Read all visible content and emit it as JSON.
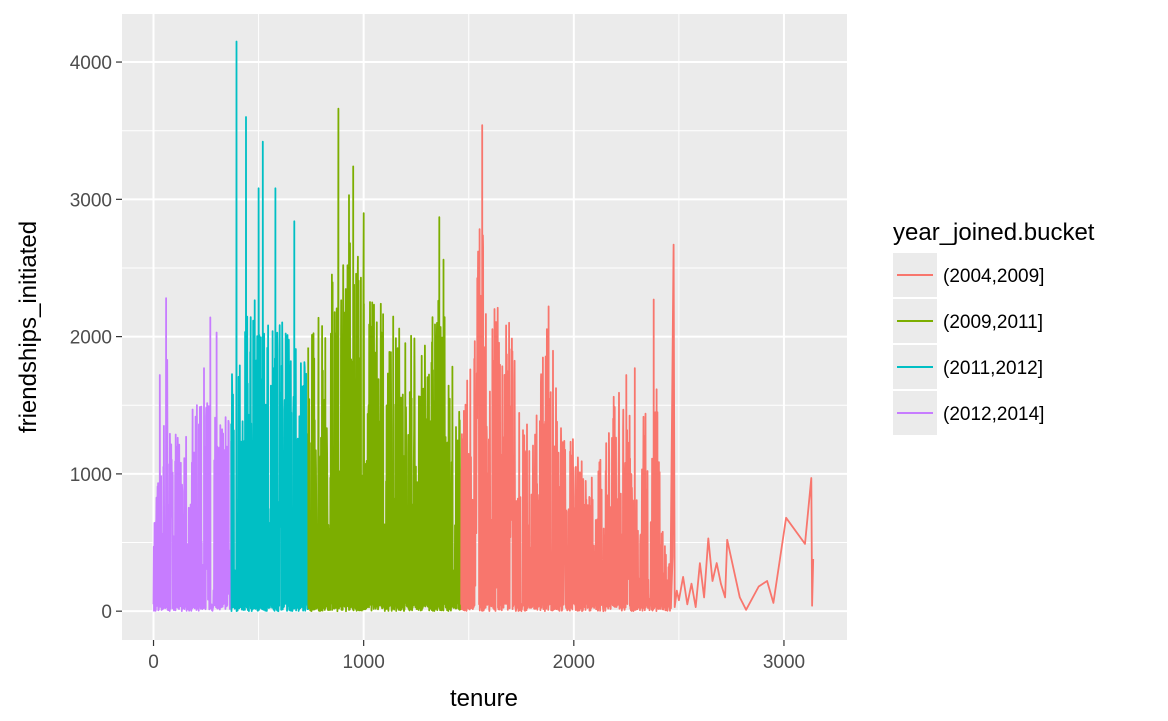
{
  "chart_data": {
    "type": "line",
    "title": "",
    "xlabel": "tenure",
    "ylabel": "friendships_initiated",
    "xlim": [
      -150,
      3300
    ],
    "ylim": [
      -210,
      4350
    ],
    "xticks": [
      0,
      1000,
      2000,
      3000
    ],
    "yticks": [
      0,
      1000,
      2000,
      3000,
      4000
    ],
    "xtick_labels": [
      "0",
      "1000",
      "2000",
      "3000"
    ],
    "ytick_labels": [
      "0",
      "1000",
      "2000",
      "3000",
      "4000"
    ],
    "grid": true,
    "legend_position": "right",
    "legend_title": "year_joined.bucket",
    "series": [
      {
        "name": "(2004,2009]",
        "color": "#F8766D",
        "x_range": [
          1464,
          3139
        ],
        "dense_until": 2460,
        "envelope": [
          [
            1464,
            1450
          ],
          [
            1520,
            2000
          ],
          [
            1564,
            3540
          ],
          [
            1600,
            2400
          ],
          [
            1700,
            2100
          ],
          [
            1800,
            1200
          ],
          [
            1880,
            2220
          ],
          [
            1950,
            1300
          ],
          [
            2000,
            1250
          ],
          [
            2100,
            950
          ],
          [
            2200,
            1700
          ],
          [
            2250,
            1720
          ],
          [
            2300,
            900
          ],
          [
            2380,
            2270
          ],
          [
            2420,
            700
          ],
          [
            2460,
            300
          ]
        ],
        "highlights": [
          [
            1564,
            3540
          ],
          [
            1880,
            2220
          ],
          [
            2380,
            2270
          ],
          [
            2475,
            2670
          ],
          [
            2250,
            1720
          ],
          [
            2290,
            1770
          ]
        ],
        "sparse": [
          [
            2462,
            20
          ],
          [
            2470,
            400
          ],
          [
            2475,
            2670
          ],
          [
            2480,
            30
          ],
          [
            2490,
            150
          ],
          [
            2500,
            80
          ],
          [
            2520,
            250
          ],
          [
            2540,
            50
          ],
          [
            2560,
            200
          ],
          [
            2580,
            30
          ],
          [
            2600,
            350
          ],
          [
            2620,
            100
          ],
          [
            2640,
            530
          ],
          [
            2660,
            220
          ],
          [
            2680,
            350
          ],
          [
            2700,
            200
          ],
          [
            2720,
            100
          ],
          [
            2730,
            520
          ],
          [
            2790,
            100
          ],
          [
            2820,
            10
          ],
          [
            2880,
            180
          ],
          [
            2920,
            220
          ],
          [
            2950,
            60
          ],
          [
            3010,
            680
          ],
          [
            3100,
            490
          ],
          [
            3130,
            970
          ],
          [
            3134,
            40
          ],
          [
            3139,
            380
          ]
        ]
      },
      {
        "name": "(2009,2011]",
        "color": "#7CAE00",
        "x_range": [
          736,
          1464
        ],
        "envelope": [
          [
            736,
            2100
          ],
          [
            800,
            2300
          ],
          [
            880,
            2600
          ],
          [
            950,
            2800
          ],
          [
            1000,
            2500
          ],
          [
            1100,
            2200
          ],
          [
            1200,
            2100
          ],
          [
            1300,
            2000
          ],
          [
            1360,
            2500
          ],
          [
            1420,
            1800
          ],
          [
            1464,
            1500
          ]
        ],
        "highlights": [
          [
            880,
            3660
          ],
          [
            950,
            3240
          ],
          [
            930,
            3030
          ],
          [
            1000,
            2900
          ],
          [
            1360,
            2870
          ],
          [
            1380,
            2560
          ]
        ]
      },
      {
        "name": "(2011,2012]",
        "color": "#00BFC4",
        "x_range": [
          370,
          736
        ],
        "envelope": [
          [
            370,
            1900
          ],
          [
            420,
            2300
          ],
          [
            500,
            2400
          ],
          [
            580,
            2200
          ],
          [
            650,
            2000
          ],
          [
            736,
            1800
          ]
        ],
        "highlights": [
          [
            395,
            4150
          ],
          [
            440,
            3600
          ],
          [
            520,
            3420
          ],
          [
            500,
            3080
          ],
          [
            580,
            3080
          ],
          [
            670,
            2840
          ]
        ]
      },
      {
        "name": "(2012,2014]",
        "color": "#C77CFF",
        "x_range": [
          0,
          370
        ],
        "envelope": [
          [
            0,
            600
          ],
          [
            30,
            1100
          ],
          [
            60,
            1500
          ],
          [
            100,
            1300
          ],
          [
            150,
            1400
          ],
          [
            200,
            1500
          ],
          [
            260,
            1600
          ],
          [
            300,
            1500
          ],
          [
            370,
            1400
          ]
        ],
        "highlights": [
          [
            30,
            1720
          ],
          [
            60,
            2280
          ],
          [
            65,
            1830
          ],
          [
            270,
            2140
          ],
          [
            300,
            2030
          ],
          [
            240,
            1770
          ]
        ]
      }
    ],
    "legend_order": [
      "(2004,2009]",
      "(2009,2011]",
      "(2011,2012]",
      "(2012,2014]"
    ]
  }
}
